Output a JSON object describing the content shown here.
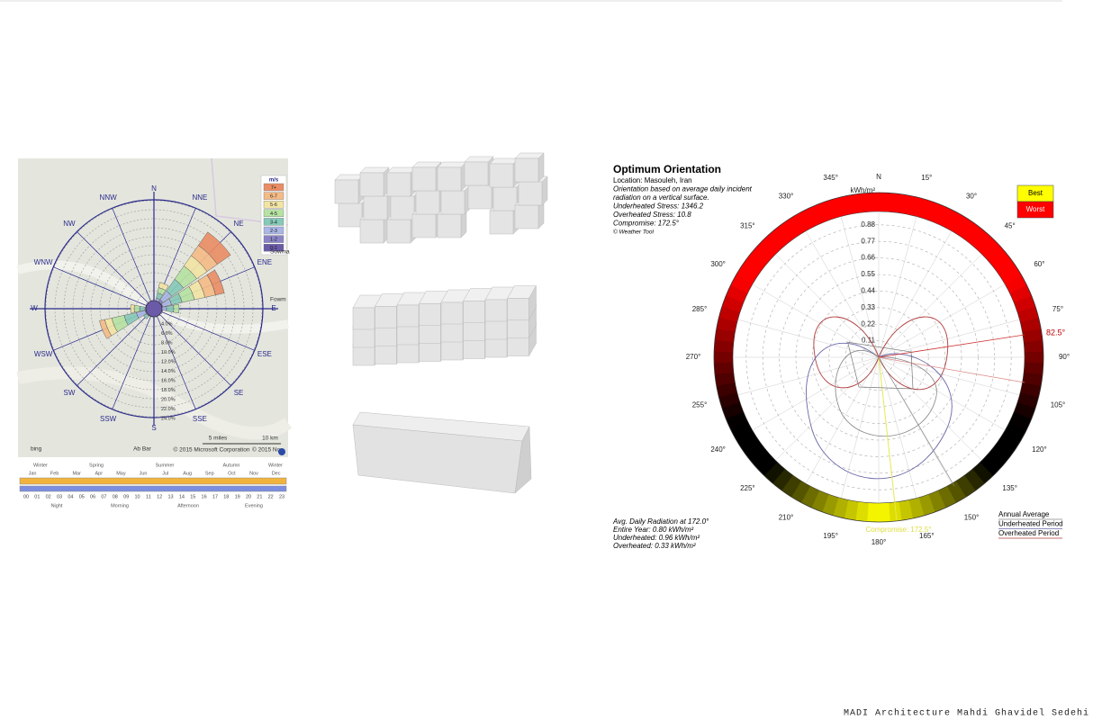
{
  "wind_rose": {
    "directions": [
      "N",
      "NNE",
      "NE",
      "ENE",
      "E",
      "ESE",
      "SE",
      "SSE",
      "S",
      "SSW",
      "SW",
      "WSW",
      "W",
      "WNW",
      "NW",
      "NNW"
    ],
    "legend_title": "m/s",
    "legend": [
      "7+",
      "6-7",
      "5-6",
      "4-5",
      "3-4",
      "2-3",
      "1-2",
      "0-1"
    ],
    "radial_labels": [
      "4.0%",
      "6.0%",
      "8.0%",
      "10.0%",
      "12.0%",
      "14.0%",
      "16.0%",
      "18.0%",
      "20.0%",
      "22.0%",
      "24.0%"
    ],
    "map_labels": {
      "place_1": "Ab Bar",
      "place_2": "Fowm",
      "place_3": "Sowma",
      "copyright_1": "© 2015 Microsoft Corporation",
      "copyright_2": "© 2015 No",
      "scale_1": "5 miles",
      "scale_2": "10 km",
      "brand": "bing"
    },
    "timeline": {
      "seasons": [
        "Winter",
        "Spring",
        "Summer",
        "Autumn",
        "Winter"
      ],
      "months": [
        "Jan",
        "Feb",
        "Mar",
        "Apr",
        "May",
        "Jun",
        "Jul",
        "Aug",
        "Sep",
        "Oct",
        "Nov",
        "Dec"
      ],
      "hours": [
        "00",
        "01",
        "02",
        "03",
        "04",
        "05",
        "06",
        "07",
        "08",
        "09",
        "10",
        "11",
        "12",
        "13",
        "14",
        "15",
        "16",
        "17",
        "18",
        "19",
        "20",
        "21",
        "22",
        "23"
      ],
      "periods": [
        "Night",
        "Morning",
        "Afternoon",
        "Evening"
      ]
    }
  },
  "orientation": {
    "title": "Optimum Orientation",
    "info": [
      "Location: Masouleh, Iran",
      "Orientation based on average daily incident",
      "radiation on a vertical surface.",
      "Underheated Stress: 1346.2",
      "Overheated Stress: 10.8",
      "Compromise: 172.5°",
      "© Weather Tool"
    ],
    "unit": "kWh/m²",
    "angles": [
      "N",
      "15°",
      "30°",
      "45°",
      "60°",
      "75°",
      "90°",
      "105°",
      "120°",
      "135°",
      "150°",
      "165°",
      "180°",
      "195°",
      "210°",
      "225°",
      "240°",
      "255°",
      "270°",
      "285°",
      "300°",
      "315°",
      "330°",
      "345°"
    ],
    "radial": [
      "0.11",
      "0.22",
      "0.33",
      "0.44",
      "0.55",
      "0.66",
      "0.77",
      "0.88"
    ],
    "marker": "82.5°",
    "compromise_label": "Compromise: 172.5°",
    "legend": {
      "best": "Best",
      "worst": "Worst"
    },
    "lines_legend": [
      "Annual Average",
      "Underheated Period",
      "Overheated Period"
    ],
    "summary": [
      "Avg. Daily Radiation at 172.0°",
      "Entire Year: 0.80 kWh/m²",
      "Underheated: 0.96 kWh/m²",
      "Overheated: 0.33 kWh/m²"
    ]
  },
  "footer": "MADI Architecture Mahdi Ghavidel Sedehi"
}
